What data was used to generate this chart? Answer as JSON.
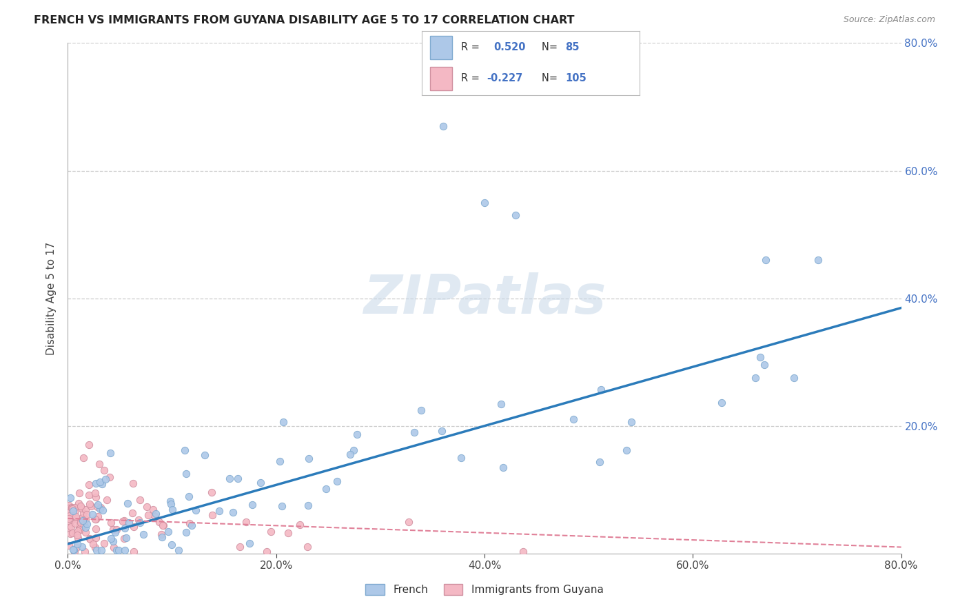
{
  "title": "FRENCH VS IMMIGRANTS FROM GUYANA DISABILITY AGE 5 TO 17 CORRELATION CHART",
  "source": "Source: ZipAtlas.com",
  "ylabel": "Disability Age 5 to 17",
  "xlim": [
    0.0,
    0.8
  ],
  "ylim": [
    0.0,
    0.8
  ],
  "xtick_labels": [
    "0.0%",
    "20.0%",
    "40.0%",
    "60.0%",
    "80.0%"
  ],
  "xtick_positions": [
    0.0,
    0.2,
    0.4,
    0.6,
    0.8
  ],
  "ytick_labels": [
    "20.0%",
    "40.0%",
    "60.0%",
    "80.0%"
  ],
  "ytick_positions": [
    0.2,
    0.4,
    0.6,
    0.8
  ],
  "grid_color": "#cccccc",
  "background_color": "#ffffff",
  "watermark": "ZIPatlas",
  "french_color": "#adc8e8",
  "french_line_color": "#2b7bba",
  "guyana_color": "#f4b8c4",
  "guyana_line_color": "#e08098",
  "marker_size": 55,
  "blue_line_x0": 0.0,
  "blue_line_y0": 0.015,
  "blue_line_x1": 0.8,
  "blue_line_y1": 0.385,
  "pink_line_x0": 0.0,
  "pink_line_y0": 0.055,
  "pink_line_x1": 0.8,
  "pink_line_y1": 0.01
}
